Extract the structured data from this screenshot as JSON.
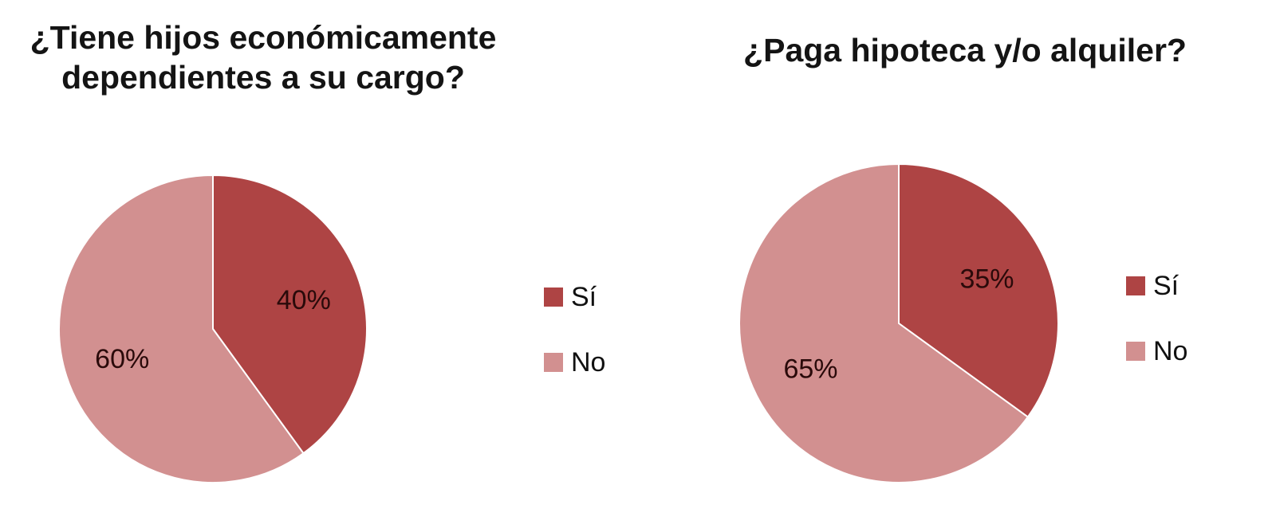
{
  "charts": [
    {
      "title": "¿Tiene hijos económicamente dependientes a su cargo?",
      "slices": [
        {
          "label": "Sí",
          "value": 40,
          "display": "40%",
          "color": "#AE4444"
        },
        {
          "label": "No",
          "value": 60,
          "display": "60%",
          "color": "#D29090"
        }
      ],
      "legend": [
        "Sí",
        "No"
      ]
    },
    {
      "title": "¿Paga hipoteca y/o alquiler?",
      "slices": [
        {
          "label": "Sí",
          "value": 35,
          "display": "35%",
          "color": "#AE4444"
        },
        {
          "label": "No",
          "value": 65,
          "display": "65%",
          "color": "#D29090"
        }
      ],
      "legend": [
        "Sí",
        "No"
      ]
    }
  ],
  "chart_data": [
    {
      "type": "pie",
      "title": "¿Tiene hijos económicamente dependientes a su cargo?",
      "categories": [
        "Sí",
        "No"
      ],
      "values": [
        40,
        60
      ],
      "legend_position": "right"
    },
    {
      "type": "pie",
      "title": "¿Paga hipoteca y/o alquiler?",
      "categories": [
        "Sí",
        "No"
      ],
      "values": [
        35,
        65
      ],
      "legend_position": "right"
    }
  ]
}
